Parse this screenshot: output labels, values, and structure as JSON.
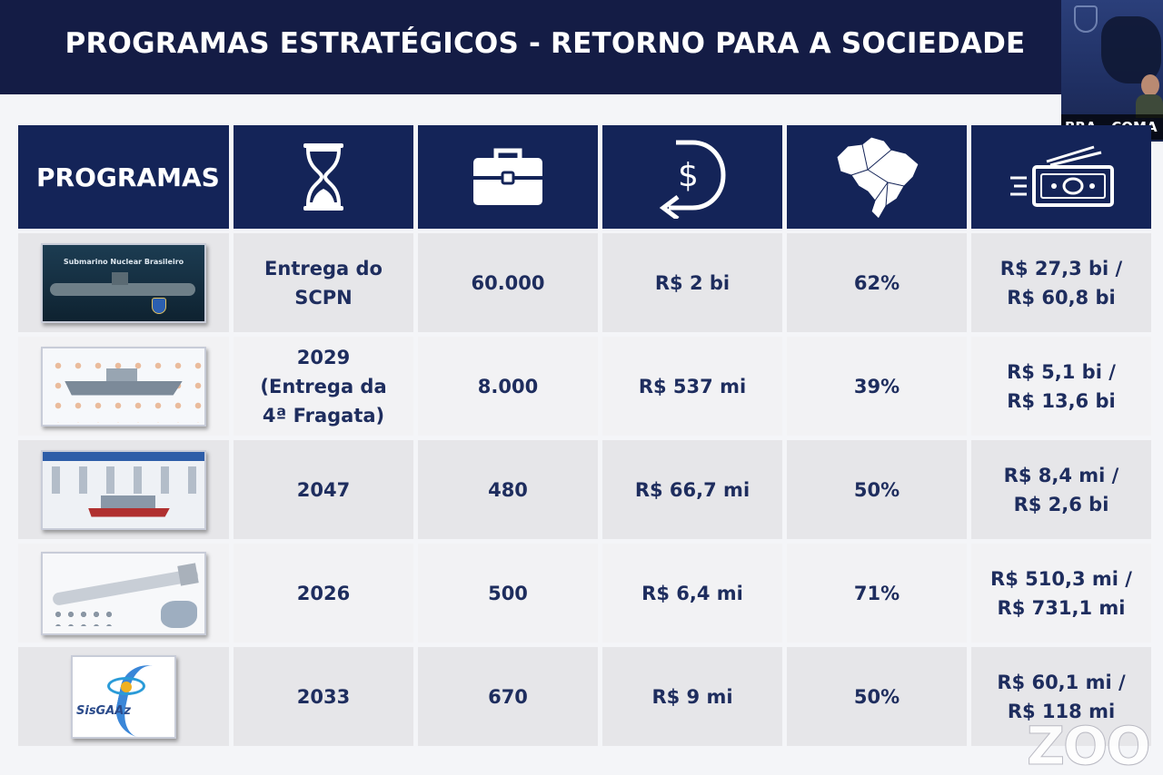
{
  "slide": {
    "title": "PROGRAMAS ESTRATÉGICOS - RETORNO PARA A SOCIEDADE"
  },
  "video": {
    "participant_label": "BRA - COMA"
  },
  "table": {
    "first_header": "PROGRAMAS",
    "header_icons": [
      "hourglass-icon",
      "briefcase-icon",
      "dollar-return-icon",
      "brazil-map-icon",
      "money-icon"
    ],
    "rows": [
      {
        "image": "submarine-image",
        "image_title": "Submarino Nuclear Brasileiro",
        "year": "Entrega do SCPN",
        "jobs": "60.000",
        "return": "R$ 2 bi",
        "nationalization": "62%",
        "investment": "R$ 27,3 bi /\nR$ 60,8 bi"
      },
      {
        "image": "frigate-image",
        "year": "2029\n(Entrega da\n4ª Fragata)",
        "jobs": "8.000",
        "return": "R$ 537 mi",
        "nationalization": "39%",
        "investment": "R$ 5,1 bi /\nR$ 13,6 bi"
      },
      {
        "image": "patrol-ship-image",
        "year": "2047",
        "jobs": "480",
        "return": "R$ 66,7 mi",
        "nationalization": "50%",
        "investment": "R$ 8,4 mi /\nR$ 2,6 bi"
      },
      {
        "image": "missile-image",
        "year": "2026",
        "jobs": "500",
        "return": "R$ 6,4 mi",
        "nationalization": "71%",
        "investment": "R$ 510,3 mi /\nR$ 731,1 mi"
      },
      {
        "image": "sisgaaz-logo",
        "logo_text": "SisGAAz",
        "year": "2033",
        "jobs": "670",
        "return": "R$ 9 mi",
        "nationalization": "50%",
        "investment": "R$ 60,1 mi /\nR$ 118 mi"
      }
    ]
  },
  "watermark": "ZOO",
  "colors": {
    "header_bg": "#141c45",
    "table_header_bg": "#142458",
    "cell_text": "#1e2d5e",
    "row_a": "#e6e6e9",
    "row_b": "#f2f2f4"
  }
}
